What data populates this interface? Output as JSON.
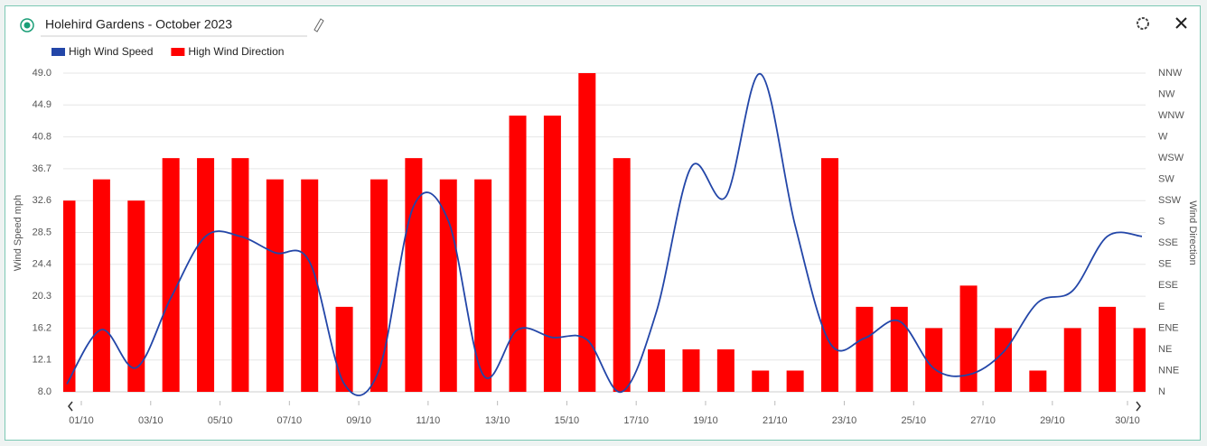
{
  "chart_data": {
    "type": "bar-line",
    "title": "Holehird Gardens - October 2023",
    "ylabel": "Wind Speed mph",
    "y2label": "Wind Direction",
    "categories": [
      "01/10",
      null,
      "03/10",
      null,
      "05/10",
      null,
      "07/10",
      null,
      "09/10",
      null,
      "11/10",
      null,
      "13/10",
      null,
      "15/10",
      null,
      "17/10",
      null,
      "19/10",
      null,
      "21/10",
      null,
      "23/10",
      null,
      "25/10",
      null,
      "27/10",
      null,
      "29/10",
      null,
      null,
      "30/10"
    ],
    "series": [
      {
        "name": "High Wind Speed",
        "color": "#2346a8",
        "kind": "line",
        "values": [
          9.0,
          16.0,
          11.1,
          20.1,
          28.0,
          28.0,
          25.9,
          24.7,
          9.0,
          10.8,
          31.9,
          30.0,
          10.2,
          16.0,
          15.0,
          14.7,
          8.0,
          18.3,
          36.9,
          33.1,
          48.9,
          29.4,
          14.3,
          14.9,
          17.1,
          11.0,
          10.2,
          13.1,
          19.5,
          21.0,
          28.0,
          28.0
        ]
      },
      {
        "name": "High Wind Direction",
        "color": "#ff0000",
        "kind": "bar",
        "axis": "y2",
        "values": [
          202.5,
          225,
          202.5,
          247.5,
          247.5,
          247.5,
          225,
          225,
          90,
          225,
          247.5,
          225,
          225,
          292.5,
          292.5,
          337.5,
          247.5,
          45,
          45,
          45,
          22.5,
          22.5,
          247.5,
          90,
          90,
          67.5,
          112.5,
          67.5,
          22.5,
          67.5,
          90,
          67.5
        ]
      }
    ],
    "ylim": [
      8,
      49
    ],
    "yticks": [
      {
        "value": 8,
        "label": "8.0"
      },
      12.1,
      16.2,
      20.3,
      24.4,
      28.5,
      32.6,
      36.7,
      40.8,
      44.9,
      {
        "value": 49,
        "label": "49.0"
      }
    ],
    "y2lim": [
      0,
      337.5
    ],
    "y2ticks": [
      {
        "value": 0,
        "label": "N"
      },
      {
        "value": 22.5,
        "label": "NNE"
      },
      {
        "value": 45,
        "label": "NE"
      },
      {
        "value": 67.5,
        "label": "ENE"
      },
      {
        "value": 90,
        "label": "E"
      },
      {
        "value": 112.5,
        "label": "ESE"
      },
      {
        "value": 135,
        "label": "SE"
      },
      {
        "value": 157.5,
        "label": "SSE"
      },
      {
        "value": 180,
        "label": "S"
      },
      {
        "value": 202.5,
        "label": "SSW"
      },
      {
        "value": 225,
        "label": "SW"
      },
      {
        "value": 247.5,
        "label": "WSW"
      },
      {
        "value": 270,
        "label": "W"
      },
      {
        "value": 292.5,
        "label": "WNW"
      },
      {
        "value": 315,
        "label": "NW"
      },
      {
        "value": 337.5,
        "label": "NNW"
      }
    ],
    "grid": true
  }
}
